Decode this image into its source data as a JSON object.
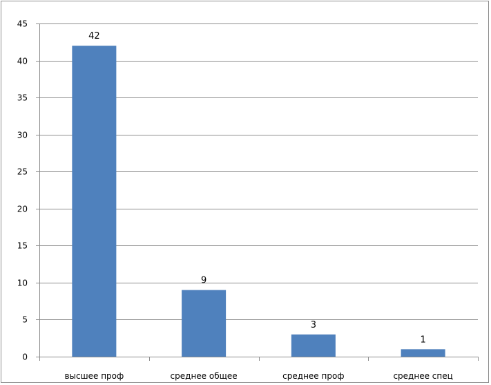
{
  "chart_data": {
    "type": "bar",
    "categories": [
      "высшее проф",
      "среднее общее",
      "среднее проф",
      "среднее спец"
    ],
    "values": [
      42,
      9,
      3,
      1
    ],
    "data_labels": [
      "42",
      "9",
      "3",
      "1"
    ],
    "title": "",
    "xlabel": "",
    "ylabel": "",
    "ylim": [
      0,
      45
    ],
    "yticks": [
      0,
      5,
      10,
      15,
      20,
      25,
      30,
      35,
      40,
      45
    ],
    "grid": true,
    "legend": "none",
    "bar_color": "#4f81bd",
    "grid_color": "#8c8c8c"
  }
}
